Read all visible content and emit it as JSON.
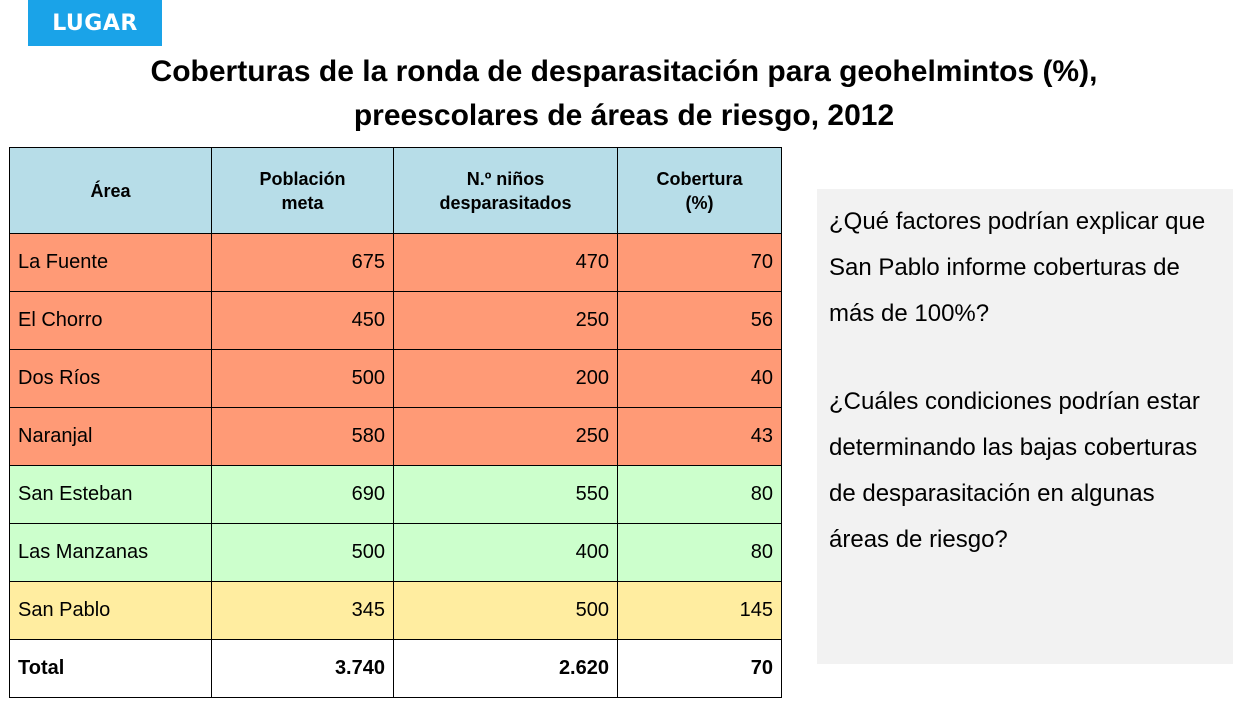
{
  "tag": "LUGAR",
  "title_line1": "Coberturas de la ronda de desparasitación para geohelmintos (%),",
  "title_line2": "preescolares de áreas de riesgo, 2012",
  "table": {
    "headers": {
      "area": "Área",
      "poblacion_l1": "Población",
      "poblacion_l2": "meta",
      "ninos_l1": "N.º niños",
      "ninos_l2": "desparasitados",
      "cobertura_l1": "Cobertura",
      "cobertura_l2": "(%)"
    },
    "rows": [
      {
        "area": "La Fuente",
        "poblacion": "675",
        "ninos": "470",
        "cobertura": "70"
      },
      {
        "area": "El Chorro",
        "poblacion": "450",
        "ninos": "250",
        "cobertura": "56"
      },
      {
        "area": "Dos Ríos",
        "poblacion": "500",
        "ninos": "200",
        "cobertura": "40"
      },
      {
        "area": "Naranjal",
        "poblacion": "580",
        "ninos": "250",
        "cobertura": "43"
      },
      {
        "area": "San Esteban",
        "poblacion": "690",
        "ninos": "550",
        "cobertura": "80"
      },
      {
        "area": "Las Manzanas",
        "poblacion": "500",
        "ninos": "400",
        "cobertura": "80"
      },
      {
        "area": "San Pablo",
        "poblacion": "345",
        "ninos": "500",
        "cobertura": "145"
      }
    ],
    "total": {
      "area": "Total",
      "poblacion": "3.740",
      "ninos": "2.620",
      "cobertura": "70"
    }
  },
  "questions": {
    "q1": "¿Qué factores podrían explicar que San Pablo informe coberturas de más de 100%?",
    "q2": "¿Cuáles condiciones podrían estar determinando las bajas coberturas de desparasitación en algunas áreas de riesgo?"
  },
  "colors": {
    "tag": "#1aa3e8",
    "header": "#b7dde8",
    "low_coverage": "#ff9a76",
    "mid_coverage": "#ccffcc",
    "over_coverage": "#ffeda0",
    "question_box": "#f2f2f2"
  }
}
